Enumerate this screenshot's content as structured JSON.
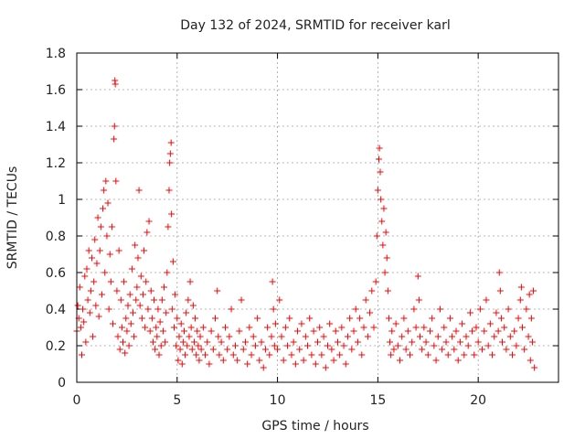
{
  "chart_data": {
    "type": "scatter",
    "title": "Day 132 of 2024, SRMTID for receiver karl",
    "xlabel": "GPS time / hours",
    "ylabel": "SRMTID / TECUs",
    "xlim": [
      0,
      24
    ],
    "ylim": [
      0,
      1.8
    ],
    "xticks": [
      0,
      5,
      10,
      15,
      20
    ],
    "yticks": [
      0,
      0.2,
      0.4,
      0.6,
      0.8,
      1,
      1.2,
      1.4,
      1.6,
      1.8
    ],
    "xtick_labels": [
      "0",
      "5",
      "10",
      "15",
      "20"
    ],
    "ytick_labels": [
      "0",
      "0.2",
      "0.4",
      "0.6",
      "0.8",
      "1",
      "1.2",
      "1.4",
      "1.6",
      "1.8"
    ],
    "grid": true,
    "marker": "+",
    "color": "#ff0000",
    "series": [
      {
        "name": "SRMTID",
        "points": [
          [
            0.0,
            0.28
          ],
          [
            0.05,
            0.42
          ],
          [
            0.1,
            0.35
          ],
          [
            0.15,
            0.52
          ],
          [
            0.2,
            0.3
          ],
          [
            0.25,
            0.15
          ],
          [
            0.3,
            0.4
          ],
          [
            0.35,
            0.33
          ],
          [
            0.4,
            0.58
          ],
          [
            0.45,
            0.22
          ],
          [
            0.5,
            0.62
          ],
          [
            0.55,
            0.45
          ],
          [
            0.6,
            0.72
          ],
          [
            0.65,
            0.38
          ],
          [
            0.7,
            0.5
          ],
          [
            0.75,
            0.68
          ],
          [
            0.8,
            0.25
          ],
          [
            0.85,
            0.55
          ],
          [
            0.9,
            0.78
          ],
          [
            0.95,
            0.42
          ],
          [
            1.0,
            0.65
          ],
          [
            1.05,
            0.9
          ],
          [
            1.1,
            0.36
          ],
          [
            1.15,
            0.72
          ],
          [
            1.2,
            0.85
          ],
          [
            1.25,
            0.48
          ],
          [
            1.3,
            0.95
          ],
          [
            1.35,
            1.05
          ],
          [
            1.4,
            0.6
          ],
          [
            1.45,
            1.1
          ],
          [
            1.5,
            0.8
          ],
          [
            1.55,
            0.98
          ],
          [
            1.6,
            0.4
          ],
          [
            1.65,
            0.7
          ],
          [
            1.7,
            0.55
          ],
          [
            1.75,
            0.85
          ],
          [
            1.8,
            0.32
          ],
          [
            1.85,
            1.33
          ],
          [
            1.88,
            1.4
          ],
          [
            1.9,
            1.65
          ],
          [
            1.92,
            1.63
          ],
          [
            1.95,
            1.1
          ],
          [
            2.0,
            0.5
          ],
          [
            2.05,
            0.25
          ],
          [
            2.1,
            0.72
          ],
          [
            2.15,
            0.18
          ],
          [
            2.2,
            0.45
          ],
          [
            2.25,
            0.3
          ],
          [
            2.3,
            0.22
          ],
          [
            2.35,
            0.55
          ],
          [
            2.4,
            0.16
          ],
          [
            2.45,
            0.35
          ],
          [
            2.5,
            0.28
          ],
          [
            2.55,
            0.42
          ],
          [
            2.6,
            0.2
          ],
          [
            2.65,
            0.48
          ],
          [
            2.7,
            0.32
          ],
          [
            2.75,
            0.62
          ],
          [
            2.8,
            0.38
          ],
          [
            2.85,
            0.25
          ],
          [
            2.9,
            0.75
          ],
          [
            2.95,
            0.45
          ],
          [
            3.0,
            0.52
          ],
          [
            3.05,
            0.68
          ],
          [
            3.1,
            1.05
          ],
          [
            3.15,
            0.42
          ],
          [
            3.2,
            0.58
          ],
          [
            3.25,
            0.35
          ],
          [
            3.3,
            0.48
          ],
          [
            3.35,
            0.72
          ],
          [
            3.4,
            0.3
          ],
          [
            3.45,
            0.55
          ],
          [
            3.5,
            0.82
          ],
          [
            3.55,
            0.4
          ],
          [
            3.6,
            0.88
          ],
          [
            3.65,
            0.28
          ],
          [
            3.7,
            0.5
          ],
          [
            3.75,
            0.35
          ],
          [
            3.8,
            0.22
          ],
          [
            3.85,
            0.45
          ],
          [
            3.9,
            0.18
          ],
          [
            3.95,
            0.3
          ],
          [
            4.0,
            0.25
          ],
          [
            4.05,
            0.4
          ],
          [
            4.1,
            0.15
          ],
          [
            4.15,
            0.33
          ],
          [
            4.2,
            0.2
          ],
          [
            4.25,
            0.45
          ],
          [
            4.3,
            0.28
          ],
          [
            4.35,
            0.52
          ],
          [
            4.4,
            0.22
          ],
          [
            4.45,
            0.38
          ],
          [
            4.5,
            0.6
          ],
          [
            4.55,
            0.85
          ],
          [
            4.6,
            1.05
          ],
          [
            4.63,
            1.2
          ],
          [
            4.66,
            1.25
          ],
          [
            4.7,
            1.31
          ],
          [
            4.72,
            0.92
          ],
          [
            4.75,
            0.4
          ],
          [
            4.8,
            0.66
          ],
          [
            4.85,
            0.3
          ],
          [
            4.9,
            0.48
          ],
          [
            4.95,
            0.2
          ],
          [
            5.0,
            0.35
          ],
          [
            5.05,
            0.12
          ],
          [
            5.1,
            0.25
          ],
          [
            5.15,
            0.18
          ],
          [
            5.2,
            0.32
          ],
          [
            5.25,
            0.1
          ],
          [
            5.3,
            0.22
          ],
          [
            5.35,
            0.28
          ],
          [
            5.4,
            0.15
          ],
          [
            5.45,
            0.38
          ],
          [
            5.5,
            0.2
          ],
          [
            5.55,
            0.45
          ],
          [
            5.6,
            0.25
          ],
          [
            5.65,
            0.55
          ],
          [
            5.7,
            0.3
          ],
          [
            5.75,
            0.18
          ],
          [
            5.8,
            0.42
          ],
          [
            5.85,
            0.22
          ],
          [
            5.9,
            0.35
          ],
          [
            5.95,
            0.15
          ],
          [
            6.0,
            0.28
          ],
          [
            6.05,
            0.2
          ],
          [
            6.1,
            0.12
          ],
          [
            6.15,
            0.25
          ],
          [
            6.2,
            0.18
          ],
          [
            6.3,
            0.3
          ],
          [
            6.4,
            0.15
          ],
          [
            6.5,
            0.22
          ],
          [
            6.6,
            0.1
          ],
          [
            6.7,
            0.28
          ],
          [
            6.8,
            0.18
          ],
          [
            6.9,
            0.35
          ],
          [
            7.0,
            0.5
          ],
          [
            7.05,
            0.25
          ],
          [
            7.1,
            0.15
          ],
          [
            7.2,
            0.22
          ],
          [
            7.3,
            0.12
          ],
          [
            7.4,
            0.3
          ],
          [
            7.5,
            0.18
          ],
          [
            7.6,
            0.25
          ],
          [
            7.7,
            0.4
          ],
          [
            7.8,
            0.15
          ],
          [
            7.9,
            0.2
          ],
          [
            8.0,
            0.12
          ],
          [
            8.1,
            0.28
          ],
          [
            8.2,
            0.45
          ],
          [
            8.3,
            0.18
          ],
          [
            8.4,
            0.22
          ],
          [
            8.5,
            0.1
          ],
          [
            8.6,
            0.3
          ],
          [
            8.7,
            0.15
          ],
          [
            8.8,
            0.25
          ],
          [
            8.9,
            0.2
          ],
          [
            9.0,
            0.35
          ],
          [
            9.1,
            0.12
          ],
          [
            9.2,
            0.22
          ],
          [
            9.3,
            0.08
          ],
          [
            9.4,
            0.18
          ],
          [
            9.5,
            0.3
          ],
          [
            9.6,
            0.15
          ],
          [
            9.7,
            0.25
          ],
          [
            9.75,
            0.55
          ],
          [
            9.8,
            0.4
          ],
          [
            9.85,
            0.2
          ],
          [
            9.9,
            0.32
          ],
          [
            10.0,
            0.18
          ],
          [
            10.1,
            0.45
          ],
          [
            10.2,
            0.25
          ],
          [
            10.3,
            0.12
          ],
          [
            10.4,
            0.3
          ],
          [
            10.5,
            0.2
          ],
          [
            10.6,
            0.35
          ],
          [
            10.7,
            0.15
          ],
          [
            10.8,
            0.22
          ],
          [
            10.9,
            0.1
          ],
          [
            11.0,
            0.28
          ],
          [
            11.1,
            0.18
          ],
          [
            11.2,
            0.32
          ],
          [
            11.3,
            0.12
          ],
          [
            11.4,
            0.25
          ],
          [
            11.5,
            0.2
          ],
          [
            11.6,
            0.35
          ],
          [
            11.7,
            0.15
          ],
          [
            11.8,
            0.28
          ],
          [
            11.9,
            0.1
          ],
          [
            12.0,
            0.22
          ],
          [
            12.1,
            0.3
          ],
          [
            12.2,
            0.15
          ],
          [
            12.3,
            0.25
          ],
          [
            12.4,
            0.08
          ],
          [
            12.5,
            0.2
          ],
          [
            12.6,
            0.32
          ],
          [
            12.7,
            0.18
          ],
          [
            12.8,
            0.12
          ],
          [
            12.9,
            0.28
          ],
          [
            13.0,
            0.22
          ],
          [
            13.1,
            0.15
          ],
          [
            13.2,
            0.3
          ],
          [
            13.3,
            0.2
          ],
          [
            13.4,
            0.1
          ],
          [
            13.5,
            0.25
          ],
          [
            13.6,
            0.35
          ],
          [
            13.7,
            0.18
          ],
          [
            13.8,
            0.28
          ],
          [
            13.9,
            0.4
          ],
          [
            14.0,
            0.22
          ],
          [
            14.1,
            0.35
          ],
          [
            14.2,
            0.15
          ],
          [
            14.3,
            0.3
          ],
          [
            14.4,
            0.45
          ],
          [
            14.5,
            0.25
          ],
          [
            14.6,
            0.38
          ],
          [
            14.7,
            0.5
          ],
          [
            14.8,
            0.3
          ],
          [
            14.9,
            0.55
          ],
          [
            14.95,
            0.8
          ],
          [
            15.0,
            1.05
          ],
          [
            15.05,
            1.22
          ],
          [
            15.08,
            1.28
          ],
          [
            15.12,
            1.15
          ],
          [
            15.15,
            1.0
          ],
          [
            15.2,
            0.88
          ],
          [
            15.25,
            0.75
          ],
          [
            15.3,
            0.95
          ],
          [
            15.35,
            0.6
          ],
          [
            15.4,
            0.82
          ],
          [
            15.45,
            0.68
          ],
          [
            15.5,
            0.5
          ],
          [
            15.55,
            0.35
          ],
          [
            15.6,
            0.22
          ],
          [
            15.65,
            0.15
          ],
          [
            15.7,
            0.28
          ],
          [
            15.8,
            0.18
          ],
          [
            15.9,
            0.32
          ],
          [
            16.0,
            0.2
          ],
          [
            16.1,
            0.12
          ],
          [
            16.2,
            0.25
          ],
          [
            16.3,
            0.35
          ],
          [
            16.4,
            0.18
          ],
          [
            16.5,
            0.28
          ],
          [
            16.6,
            0.15
          ],
          [
            16.7,
            0.22
          ],
          [
            16.8,
            0.4
          ],
          [
            16.9,
            0.3
          ],
          [
            17.0,
            0.58
          ],
          [
            17.05,
            0.45
          ],
          [
            17.1,
            0.25
          ],
          [
            17.2,
            0.18
          ],
          [
            17.3,
            0.3
          ],
          [
            17.4,
            0.22
          ],
          [
            17.5,
            0.15
          ],
          [
            17.6,
            0.28
          ],
          [
            17.7,
            0.35
          ],
          [
            17.8,
            0.2
          ],
          [
            17.9,
            0.12
          ],
          [
            18.0,
            0.25
          ],
          [
            18.1,
            0.4
          ],
          [
            18.2,
            0.18
          ],
          [
            18.3,
            0.3
          ],
          [
            18.4,
            0.22
          ],
          [
            18.5,
            0.15
          ],
          [
            18.6,
            0.35
          ],
          [
            18.7,
            0.25
          ],
          [
            18.8,
            0.18
          ],
          [
            18.9,
            0.28
          ],
          [
            19.0,
            0.12
          ],
          [
            19.1,
            0.22
          ],
          [
            19.2,
            0.32
          ],
          [
            19.3,
            0.15
          ],
          [
            19.4,
            0.25
          ],
          [
            19.5,
            0.2
          ],
          [
            19.6,
            0.38
          ],
          [
            19.7,
            0.28
          ],
          [
            19.8,
            0.15
          ],
          [
            19.9,
            0.3
          ],
          [
            20.0,
            0.22
          ],
          [
            20.1,
            0.4
          ],
          [
            20.2,
            0.18
          ],
          [
            20.3,
            0.28
          ],
          [
            20.4,
            0.45
          ],
          [
            20.5,
            0.2
          ],
          [
            20.6,
            0.32
          ],
          [
            20.7,
            0.15
          ],
          [
            20.8,
            0.25
          ],
          [
            20.9,
            0.38
          ],
          [
            21.0,
            0.28
          ],
          [
            21.05,
            0.6
          ],
          [
            21.1,
            0.5
          ],
          [
            21.15,
            0.35
          ],
          [
            21.2,
            0.22
          ],
          [
            21.3,
            0.3
          ],
          [
            21.4,
            0.18
          ],
          [
            21.5,
            0.4
          ],
          [
            21.6,
            0.25
          ],
          [
            21.7,
            0.15
          ],
          [
            21.8,
            0.28
          ],
          [
            21.9,
            0.2
          ],
          [
            22.0,
            0.35
          ],
          [
            22.1,
            0.45
          ],
          [
            22.15,
            0.52
          ],
          [
            22.2,
            0.3
          ],
          [
            22.3,
            0.18
          ],
          [
            22.4,
            0.4
          ],
          [
            22.5,
            0.25
          ],
          [
            22.55,
            0.48
          ],
          [
            22.6,
            0.12
          ],
          [
            22.65,
            0.35
          ],
          [
            22.7,
            0.22
          ],
          [
            22.75,
            0.5
          ],
          [
            22.8,
            0.08
          ]
        ]
      }
    ]
  }
}
